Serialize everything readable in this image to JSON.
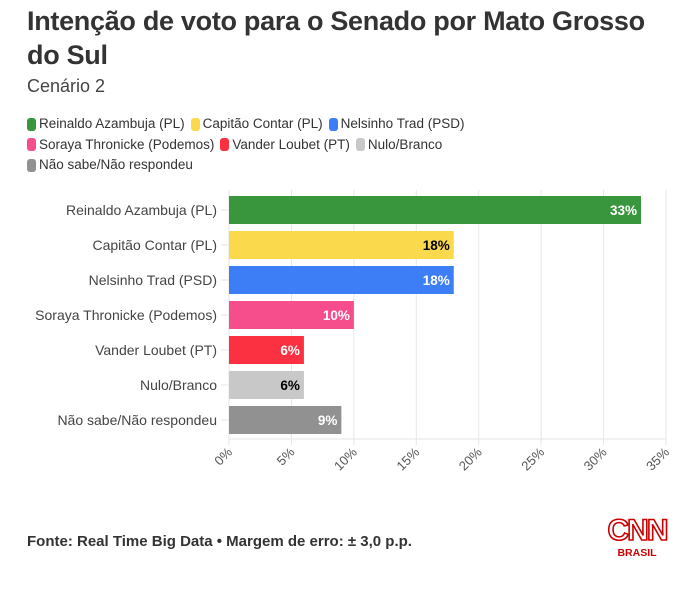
{
  "header": {
    "title": "Intenção de voto para o Senado por Mato Grosso do Sul",
    "subtitle": "Cenário 2"
  },
  "legend": [
    {
      "label": "Reinaldo Azambuja (PL)",
      "color": "#3a963c"
    },
    {
      "label": "Capitão Contar (PL)",
      "color": "#fbd94d"
    },
    {
      "label": "Nelsinho Trad (PSD)",
      "color": "#3d7ef6"
    },
    {
      "label": "Soraya Thronicke (Podemos)",
      "color": "#f64d8c"
    },
    {
      "label": "Vander Loubet (PT)",
      "color": "#fb3041"
    },
    {
      "label": "Nulo/Branco",
      "color": "#c8c8c8"
    },
    {
      "label": "Não sabe/Não respondeu",
      "color": "#919191"
    }
  ],
  "chart_data": {
    "type": "bar",
    "orientation": "horizontal",
    "title": "Intenção de voto para o Senado por Mato Grosso do Sul",
    "subtitle": "Cenário 2",
    "categories": [
      "Reinaldo Azambuja (PL)",
      "Capitão Contar (PL)",
      "Nelsinho Trad (PSD)",
      "Soraya Thronicke (Podemos)",
      "Vander Loubet (PT)",
      "Nulo/Branco",
      "Não sabe/Não respondeu"
    ],
    "values": [
      33,
      18,
      18,
      10,
      6,
      6,
      9
    ],
    "data_labels": [
      "33%",
      "18%",
      "18%",
      "10%",
      "6%",
      "6%",
      "9%"
    ],
    "label_colors": [
      "#ffffff",
      "#000000",
      "#ffffff",
      "#ffffff",
      "#ffffff",
      "#000000",
      "#ffffff"
    ],
    "colors": [
      "#3a963c",
      "#fbd94d",
      "#3d7ef6",
      "#f64d8c",
      "#fb3041",
      "#c8c8c8",
      "#919191"
    ],
    "xlabel": "",
    "ylabel": "",
    "xlim": [
      0,
      35
    ],
    "xticks": [
      0,
      5,
      10,
      15,
      20,
      25,
      30,
      35
    ],
    "xtick_labels": [
      "0%",
      "5%",
      "10%",
      "15%",
      "20%",
      "25%",
      "30%",
      "35%"
    ],
    "grid": true,
    "legend_position": "top-left"
  },
  "footer": {
    "source": "Fonte: Real Time Big Data • Margem de erro: ± 3,0 p.p."
  },
  "logo": {
    "brand": "CNN",
    "sub": "BRASIL",
    "color": "#cc0000"
  }
}
